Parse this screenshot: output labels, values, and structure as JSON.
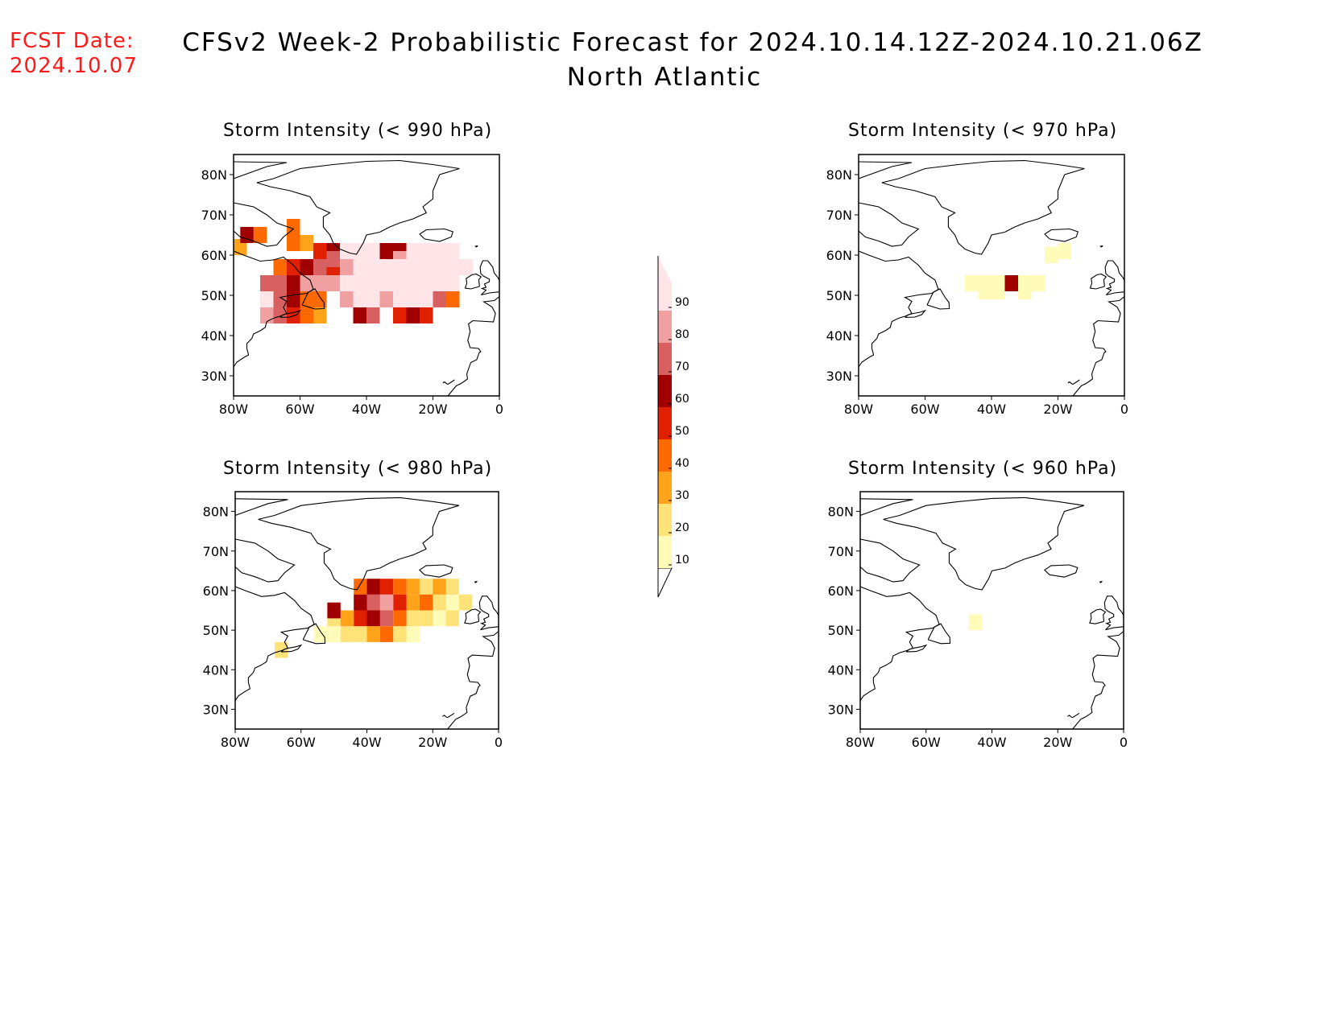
{
  "fcst_date": {
    "label": "FCST Date:",
    "value": "2024.10.07"
  },
  "title": {
    "line1": "CFSv2 Week-2 Probabilistic Forecast for 2024.10.14.12Z-2024.10.21.06Z",
    "line2": "North Atlantic"
  },
  "axes": {
    "lon_ticks": [
      "80W",
      "60W",
      "40W",
      "20W",
      "0"
    ],
    "lat_ticks": [
      "80N",
      "70N",
      "60N",
      "50N",
      "40N",
      "30N"
    ],
    "lon_range": [
      -80,
      0
    ],
    "lat_range": [
      25,
      85
    ]
  },
  "colorbar": {
    "levels": [
      "10",
      "20",
      "30",
      "40",
      "50",
      "60",
      "70",
      "80",
      "90"
    ],
    "colors": [
      "#fffbb8",
      "#ffe278",
      "#ffa41a",
      "#ff6a00",
      "#e02000",
      "#a00000",
      "#d86060",
      "#f0a0a0",
      "#ffe4e8"
    ]
  },
  "chart_data": [
    {
      "type": "heatmap",
      "title": "Storm Intensity (< 990 hPa)",
      "units": "probability (%)",
      "cells": [
        [
          -76,
          65,
          60
        ],
        [
          -72,
          65,
          40
        ],
        [
          -78,
          62,
          30
        ],
        [
          -62,
          67,
          40
        ],
        [
          -62,
          63,
          40
        ],
        [
          -58,
          63,
          30
        ],
        [
          -66,
          57,
          40
        ],
        [
          -62,
          57,
          50
        ],
        [
          -58,
          57,
          60
        ],
        [
          -54,
          57,
          70
        ],
        [
          -50,
          57,
          50
        ],
        [
          -46,
          57,
          80
        ],
        [
          -42,
          57,
          90
        ],
        [
          -38,
          57,
          90
        ],
        [
          -34,
          57,
          90
        ],
        [
          -30,
          57,
          90
        ],
        [
          -26,
          57,
          90
        ],
        [
          -22,
          57,
          90
        ],
        [
          -18,
          57,
          90
        ],
        [
          -14,
          57,
          90
        ],
        [
          -10,
          57,
          90
        ],
        [
          -54,
          61,
          50
        ],
        [
          -50,
          61,
          60
        ],
        [
          -46,
          61,
          90
        ],
        [
          -42,
          61,
          90
        ],
        [
          -38,
          61,
          90
        ],
        [
          -34,
          61,
          60
        ],
        [
          -30,
          61,
          60
        ],
        [
          -26,
          61,
          90
        ],
        [
          -22,
          61,
          90
        ],
        [
          -18,
          61,
          90
        ],
        [
          -14,
          61,
          90
        ],
        [
          -50,
          59,
          70
        ],
        [
          -38,
          59,
          70
        ],
        [
          -30,
          59,
          80
        ],
        [
          -70,
          53,
          70
        ],
        [
          -66,
          53,
          70
        ],
        [
          -62,
          53,
          60
        ],
        [
          -58,
          53,
          80
        ],
        [
          -54,
          53,
          80
        ],
        [
          -50,
          53,
          80
        ],
        [
          -46,
          53,
          90
        ],
        [
          -42,
          53,
          90
        ],
        [
          -38,
          53,
          90
        ],
        [
          -34,
          53,
          90
        ],
        [
          -30,
          53,
          90
        ],
        [
          -26,
          53,
          90
        ],
        [
          -22,
          53,
          90
        ],
        [
          -18,
          53,
          90
        ],
        [
          -14,
          53,
          90
        ],
        [
          -70,
          49,
          90
        ],
        [
          -66,
          49,
          70
        ],
        [
          -62,
          49,
          60
        ],
        [
          -58,
          49,
          40
        ],
        [
          -54,
          49,
          40
        ],
        [
          -46,
          49,
          80
        ],
        [
          -42,
          49,
          90
        ],
        [
          -38,
          49,
          90
        ],
        [
          -34,
          49,
          80
        ],
        [
          -30,
          49,
          90
        ],
        [
          -26,
          49,
          90
        ],
        [
          -22,
          49,
          90
        ],
        [
          -18,
          49,
          70
        ],
        [
          -14,
          49,
          40
        ],
        [
          -70,
          45,
          80
        ],
        [
          -66,
          45,
          70
        ],
        [
          -62,
          45,
          50
        ],
        [
          -58,
          45,
          40
        ],
        [
          -54,
          45,
          30
        ],
        [
          -42,
          45,
          60
        ],
        [
          -38,
          45,
          70
        ],
        [
          -30,
          45,
          50
        ],
        [
          -26,
          45,
          60
        ],
        [
          -22,
          45,
          50
        ]
      ]
    },
    {
      "type": "heatmap",
      "title": "Storm Intensity (< 970 hPa)",
      "units": "probability (%)",
      "cells": [
        [
          -46,
          53,
          10
        ],
        [
          -42,
          53,
          10
        ],
        [
          -38,
          53,
          10
        ],
        [
          -34,
          53,
          40
        ],
        [
          -30,
          53,
          10
        ],
        [
          -26,
          53,
          10
        ],
        [
          -42,
          51,
          10
        ],
        [
          -38,
          51,
          10
        ],
        [
          -30,
          51,
          10
        ],
        [
          -22,
          60,
          10
        ],
        [
          -18,
          61,
          10
        ],
        [
          -34,
          53,
          60
        ]
      ]
    },
    {
      "type": "heatmap",
      "title": "Storm Intensity (< 980 hPa)",
      "units": "probability (%)",
      "cells": [
        [
          -50,
          55,
          60
        ],
        [
          -50,
          53,
          20
        ],
        [
          -66,
          45,
          20
        ],
        [
          -54,
          49,
          10
        ],
        [
          -42,
          61,
          40
        ],
        [
          -38,
          61,
          60
        ],
        [
          -34,
          61,
          50
        ],
        [
          -30,
          61,
          40
        ],
        [
          -26,
          61,
          30
        ],
        [
          -22,
          61,
          20
        ],
        [
          -18,
          61,
          30
        ],
        [
          -14,
          61,
          20
        ],
        [
          -42,
          57,
          60
        ],
        [
          -38,
          57,
          70
        ],
        [
          -34,
          57,
          80
        ],
        [
          -30,
          57,
          50
        ],
        [
          -26,
          57,
          30
        ],
        [
          -22,
          57,
          40
        ],
        [
          -18,
          57,
          20
        ],
        [
          -14,
          57,
          10
        ],
        [
          -10,
          57,
          20
        ],
        [
          -46,
          53,
          30
        ],
        [
          -42,
          53,
          50
        ],
        [
          -38,
          53,
          60
        ],
        [
          -34,
          53,
          70
        ],
        [
          -30,
          53,
          40
        ],
        [
          -26,
          53,
          20
        ],
        [
          -22,
          53,
          20
        ],
        [
          -18,
          53,
          10
        ],
        [
          -14,
          53,
          20
        ],
        [
          -50,
          49,
          10
        ],
        [
          -46,
          49,
          20
        ],
        [
          -42,
          49,
          20
        ],
        [
          -38,
          49,
          30
        ],
        [
          -34,
          49,
          40
        ],
        [
          -30,
          49,
          20
        ],
        [
          -26,
          49,
          10
        ]
      ]
    },
    {
      "type": "heatmap",
      "title": "Storm Intensity (< 960 hPa)",
      "units": "probability (%)",
      "cells": [
        [
          -45,
          52,
          10
        ]
      ]
    }
  ]
}
